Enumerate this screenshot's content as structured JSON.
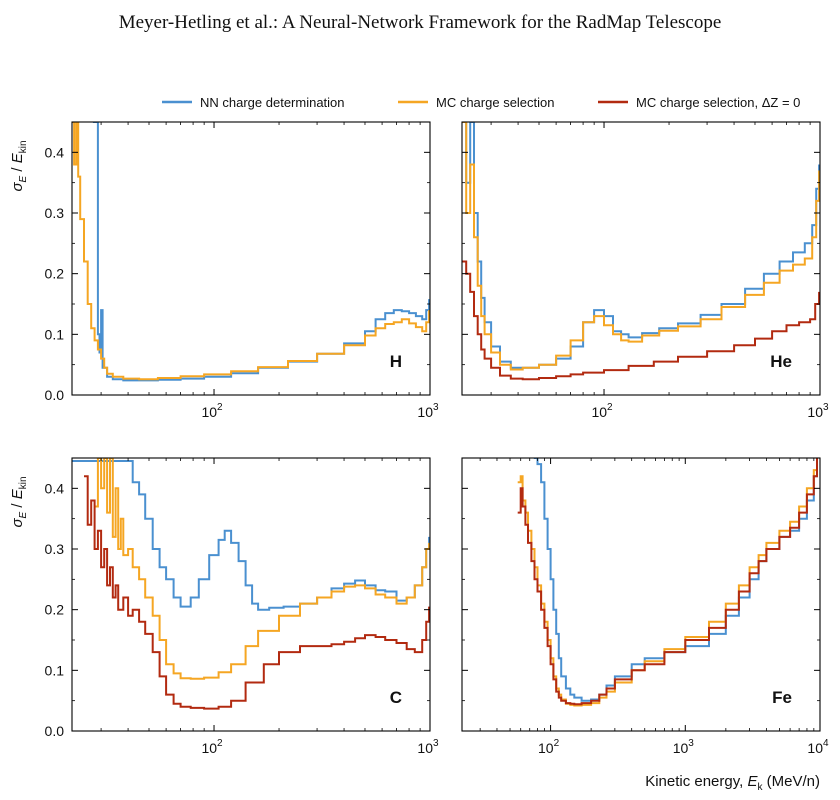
{
  "header": "Meyer-Hetling et al.: A Neural-Network Framework for the RadMap Telescope",
  "colors": {
    "nn": "#4a90d0",
    "mc": "#f5a623",
    "mc_dz0": "#b22a10"
  },
  "legend": [
    {
      "name": "NN charge determination",
      "color": "#4a90d0"
    },
    {
      "name": "MC charge selection",
      "color": "#f5a623"
    },
    {
      "name": "MC charge selection, ΔZ = 0",
      "color": "#b22a10"
    }
  ],
  "y_axis_label": "σ_E / E_kin",
  "x_axis_label": "Kinetic energy, E_k (MeV/n)",
  "chart_data": [
    {
      "type": "line",
      "panel": "H",
      "xscale": "log",
      "xlim": [
        22,
        1000
      ],
      "ylim": [
        0,
        0.45
      ],
      "yticks": [
        0.0,
        0.1,
        0.2,
        0.3,
        0.4
      ],
      "xticks": [
        {
          "v": 100,
          "base": "10",
          "exp": "2"
        },
        {
          "v": 1000,
          "base": "10",
          "exp": "3"
        }
      ],
      "series": [
        {
          "name": "NN charge determination",
          "color": "#4a90d0",
          "x": [
            27.5,
            28.3,
            29,
            29.5,
            30,
            30.5,
            32,
            34,
            38,
            45,
            55,
            70,
            90,
            120,
            160,
            220,
            300,
            400,
            500,
            560,
            620,
            680,
            740,
            800,
            860,
            920,
            960,
            990
          ],
          "y": [
            0.45,
            0.45,
            0.1,
            0.07,
            0.14,
            0.045,
            0.03,
            0.026,
            0.024,
            0.024,
            0.025,
            0.027,
            0.03,
            0.036,
            0.045,
            0.055,
            0.068,
            0.085,
            0.105,
            0.125,
            0.135,
            0.14,
            0.138,
            0.135,
            0.13,
            0.125,
            0.14,
            0.158
          ]
        },
        {
          "name": "MC charge selection",
          "color": "#f5a623",
          "x": [
            22,
            22.5,
            23,
            23.5,
            24,
            25,
            26,
            27,
            28,
            29,
            30,
            31,
            32,
            34,
            38,
            45,
            55,
            70,
            90,
            120,
            160,
            220,
            300,
            400,
            500,
            560,
            620,
            680,
            740,
            800,
            860,
            920,
            960,
            990
          ],
          "y": [
            0.45,
            0.38,
            0.45,
            0.36,
            0.29,
            0.22,
            0.15,
            0.11,
            0.09,
            0.075,
            0.06,
            0.045,
            0.035,
            0.03,
            0.027,
            0.026,
            0.028,
            0.031,
            0.034,
            0.039,
            0.046,
            0.056,
            0.068,
            0.082,
            0.098,
            0.11,
            0.117,
            0.12,
            0.125,
            0.118,
            0.112,
            0.105,
            0.12,
            0.14
          ]
        }
      ]
    },
    {
      "type": "line",
      "panel": "He",
      "xscale": "log",
      "xlim": [
        22,
        1000
      ],
      "ylim": [
        0,
        0.45
      ],
      "yticks": [
        0.0,
        0.1,
        0.2,
        0.3,
        0.4
      ],
      "xticks": [
        {
          "v": 100,
          "base": "10",
          "exp": "2"
        },
        {
          "v": 1000,
          "base": "10",
          "exp": "3"
        }
      ],
      "series": [
        {
          "name": "NN charge determination",
          "color": "#4a90d0",
          "x": [
            22,
            23,
            24,
            25,
            26,
            27,
            28,
            30,
            33,
            37,
            42,
            50,
            60,
            70,
            80,
            90,
            100,
            110,
            120,
            130,
            150,
            180,
            220,
            280,
            350,
            450,
            550,
            650,
            750,
            850,
            920,
            960,
            990
          ],
          "y": [
            0.45,
            0.35,
            0.45,
            0.3,
            0.22,
            0.16,
            0.12,
            0.08,
            0.055,
            0.045,
            0.045,
            0.05,
            0.06,
            0.08,
            0.12,
            0.14,
            0.13,
            0.105,
            0.1,
            0.095,
            0.102,
            0.11,
            0.118,
            0.132,
            0.15,
            0.175,
            0.2,
            0.22,
            0.235,
            0.25,
            0.28,
            0.34,
            0.38
          ]
        },
        {
          "name": "MC charge selection",
          "color": "#f5a623",
          "x": [
            22,
            23,
            24,
            25,
            26,
            27,
            28,
            30,
            33,
            37,
            42,
            50,
            60,
            70,
            80,
            90,
            100,
            110,
            120,
            130,
            150,
            180,
            220,
            280,
            350,
            450,
            550,
            650,
            750,
            850,
            920,
            960,
            990
          ],
          "y": [
            0.45,
            0.3,
            0.38,
            0.26,
            0.18,
            0.13,
            0.1,
            0.07,
            0.05,
            0.042,
            0.045,
            0.05,
            0.065,
            0.09,
            0.12,
            0.13,
            0.115,
            0.1,
            0.09,
            0.088,
            0.098,
            0.106,
            0.113,
            0.125,
            0.145,
            0.165,
            0.185,
            0.205,
            0.215,
            0.225,
            0.26,
            0.32,
            0.37
          ]
        },
        {
          "name": "MC charge selection, ΔZ = 0",
          "color": "#b22a10",
          "x": [
            22,
            23,
            24,
            25,
            26,
            27,
            28,
            30,
            33,
            37,
            42,
            50,
            60,
            70,
            80,
            100,
            130,
            170,
            220,
            300,
            400,
            500,
            600,
            700,
            800,
            900,
            950,
            990
          ],
          "y": [
            0.22,
            0.2,
            0.17,
            0.13,
            0.1,
            0.075,
            0.06,
            0.045,
            0.032,
            0.027,
            0.026,
            0.028,
            0.031,
            0.034,
            0.037,
            0.041,
            0.048,
            0.055,
            0.063,
            0.072,
            0.082,
            0.093,
            0.105,
            0.115,
            0.12,
            0.125,
            0.15,
            0.17
          ]
        }
      ]
    },
    {
      "type": "line",
      "panel": "C",
      "xscale": "log",
      "xlim": [
        22,
        1000
      ],
      "ylim": [
        0,
        0.45
      ],
      "yticks": [
        0.0,
        0.1,
        0.2,
        0.3,
        0.4
      ],
      "xticks": [
        {
          "v": 100,
          "base": "10",
          "exp": "2"
        },
        {
          "v": 1000,
          "base": "10",
          "exp": "3"
        }
      ],
      "series": [
        {
          "name": "NN charge determination",
          "color": "#4a90d0",
          "x": [
            22,
            30,
            36,
            40,
            42,
            45,
            48,
            52,
            56,
            60,
            65,
            70,
            78,
            85,
            95,
            105,
            112,
            120,
            130,
            140,
            150,
            160,
            180,
            210,
            250,
            300,
            350,
            400,
            450,
            500,
            560,
            620,
            700,
            780,
            850,
            920,
            960,
            990
          ],
          "y": [
            0.445,
            0.445,
            0.445,
            0.445,
            0.41,
            0.39,
            0.35,
            0.3,
            0.27,
            0.25,
            0.22,
            0.205,
            0.22,
            0.25,
            0.29,
            0.315,
            0.33,
            0.31,
            0.28,
            0.24,
            0.21,
            0.2,
            0.203,
            0.205,
            0.21,
            0.22,
            0.235,
            0.243,
            0.248,
            0.24,
            0.232,
            0.23,
            0.215,
            0.22,
            0.24,
            0.27,
            0.3,
            0.32
          ]
        },
        {
          "name": "MC charge selection",
          "color": "#f5a623",
          "x": [
            28,
            29,
            30,
            31,
            32,
            33,
            34,
            35,
            36,
            37,
            38,
            40,
            42,
            45,
            48,
            52,
            56,
            60,
            65,
            70,
            78,
            90,
            105,
            120,
            140,
            160,
            200,
            250,
            300,
            350,
            400,
            450,
            500,
            560,
            620,
            700,
            780,
            850,
            920,
            960,
            990
          ],
          "y": [
            0.37,
            0.45,
            0.4,
            0.45,
            0.36,
            0.45,
            0.32,
            0.4,
            0.3,
            0.35,
            0.29,
            0.3,
            0.27,
            0.25,
            0.22,
            0.19,
            0.15,
            0.11,
            0.095,
            0.087,
            0.086,
            0.088,
            0.097,
            0.11,
            0.14,
            0.165,
            0.19,
            0.21,
            0.22,
            0.23,
            0.238,
            0.24,
            0.235,
            0.225,
            0.22,
            0.21,
            0.22,
            0.24,
            0.27,
            0.3,
            0.31
          ]
        },
        {
          "name": "MC charge selection, ΔZ = 0",
          "color": "#b22a10",
          "x": [
            25,
            26,
            27,
            28,
            29,
            30,
            31,
            32,
            33,
            34,
            35,
            36,
            38,
            40,
            42,
            45,
            48,
            52,
            56,
            60,
            65,
            70,
            78,
            90,
            105,
            120,
            140,
            170,
            200,
            250,
            300,
            350,
            400,
            450,
            500,
            560,
            620,
            700,
            780,
            850,
            920,
            960,
            990
          ],
          "y": [
            0.42,
            0.34,
            0.38,
            0.3,
            0.33,
            0.27,
            0.3,
            0.24,
            0.27,
            0.22,
            0.24,
            0.2,
            0.22,
            0.19,
            0.2,
            0.18,
            0.16,
            0.13,
            0.09,
            0.06,
            0.045,
            0.04,
            0.038,
            0.037,
            0.04,
            0.05,
            0.08,
            0.11,
            0.13,
            0.14,
            0.14,
            0.143,
            0.147,
            0.153,
            0.158,
            0.155,
            0.15,
            0.145,
            0.135,
            0.13,
            0.15,
            0.18,
            0.205
          ]
        }
      ]
    },
    {
      "type": "line",
      "panel": "Fe",
      "xscale": "log",
      "xlim": [
        22,
        10000
      ],
      "ylim": [
        0,
        0.45
      ],
      "yticks": [
        0.0,
        0.1,
        0.2,
        0.3,
        0.4
      ],
      "xticks": [
        {
          "v": 100,
          "base": "10",
          "exp": "2"
        },
        {
          "v": 1000,
          "base": "10",
          "exp": "3"
        },
        {
          "v": 10000,
          "base": "10",
          "exp": "4"
        }
      ],
      "series": [
        {
          "name": "NN charge determination",
          "color": "#4a90d0",
          "x": [
            75,
            80,
            85,
            90,
            95,
            100,
            105,
            110,
            115,
            120,
            130,
            140,
            150,
            170,
            200,
            230,
            260,
            300,
            400,
            500,
            700,
            1000,
            1500,
            2000,
            2500,
            3000,
            3500,
            4000,
            5000,
            6000,
            7000,
            8000,
            9000,
            9500
          ],
          "y": [
            0.45,
            0.44,
            0.41,
            0.35,
            0.3,
            0.25,
            0.2,
            0.16,
            0.12,
            0.09,
            0.07,
            0.06,
            0.055,
            0.05,
            0.052,
            0.06,
            0.075,
            0.09,
            0.11,
            0.12,
            0.13,
            0.14,
            0.16,
            0.19,
            0.22,
            0.25,
            0.28,
            0.3,
            0.32,
            0.33,
            0.35,
            0.38,
            0.42,
            0.45
          ]
        },
        {
          "name": "MC charge selection",
          "color": "#f5a623",
          "x": [
            57,
            60,
            62,
            65,
            68,
            72,
            76,
            80,
            85,
            90,
            95,
            100,
            105,
            110,
            115,
            120,
            130,
            140,
            150,
            170,
            200,
            230,
            260,
            300,
            400,
            500,
            700,
            1000,
            1500,
            2000,
            2500,
            3000,
            3500,
            4000,
            5000,
            6000,
            7000,
            8000,
            9000,
            9500
          ],
          "y": [
            0.41,
            0.42,
            0.38,
            0.36,
            0.33,
            0.3,
            0.27,
            0.24,
            0.21,
            0.18,
            0.15,
            0.12,
            0.09,
            0.07,
            0.06,
            0.052,
            0.045,
            0.043,
            0.042,
            0.043,
            0.046,
            0.055,
            0.065,
            0.08,
            0.1,
            0.115,
            0.135,
            0.155,
            0.18,
            0.21,
            0.24,
            0.27,
            0.29,
            0.31,
            0.33,
            0.345,
            0.37,
            0.4,
            0.43,
            0.45
          ]
        },
        {
          "name": "MC charge selection, ΔZ = 0",
          "color": "#b22a10",
          "x": [
            57,
            60,
            62,
            65,
            68,
            72,
            76,
            80,
            85,
            90,
            95,
            100,
            105,
            110,
            115,
            120,
            130,
            140,
            150,
            170,
            200,
            230,
            260,
            300,
            400,
            500,
            700,
            1000,
            1500,
            2000,
            2500,
            3000,
            3500,
            4000,
            5000,
            6000,
            7000,
            8000,
            9000,
            9500
          ],
          "y": [
            0.36,
            0.4,
            0.37,
            0.34,
            0.31,
            0.28,
            0.25,
            0.23,
            0.2,
            0.17,
            0.14,
            0.11,
            0.085,
            0.065,
            0.055,
            0.05,
            0.046,
            0.045,
            0.044,
            0.046,
            0.05,
            0.06,
            0.07,
            0.085,
            0.1,
            0.11,
            0.13,
            0.15,
            0.17,
            0.2,
            0.23,
            0.26,
            0.28,
            0.3,
            0.32,
            0.335,
            0.36,
            0.39,
            0.42,
            0.45
          ]
        }
      ]
    }
  ]
}
